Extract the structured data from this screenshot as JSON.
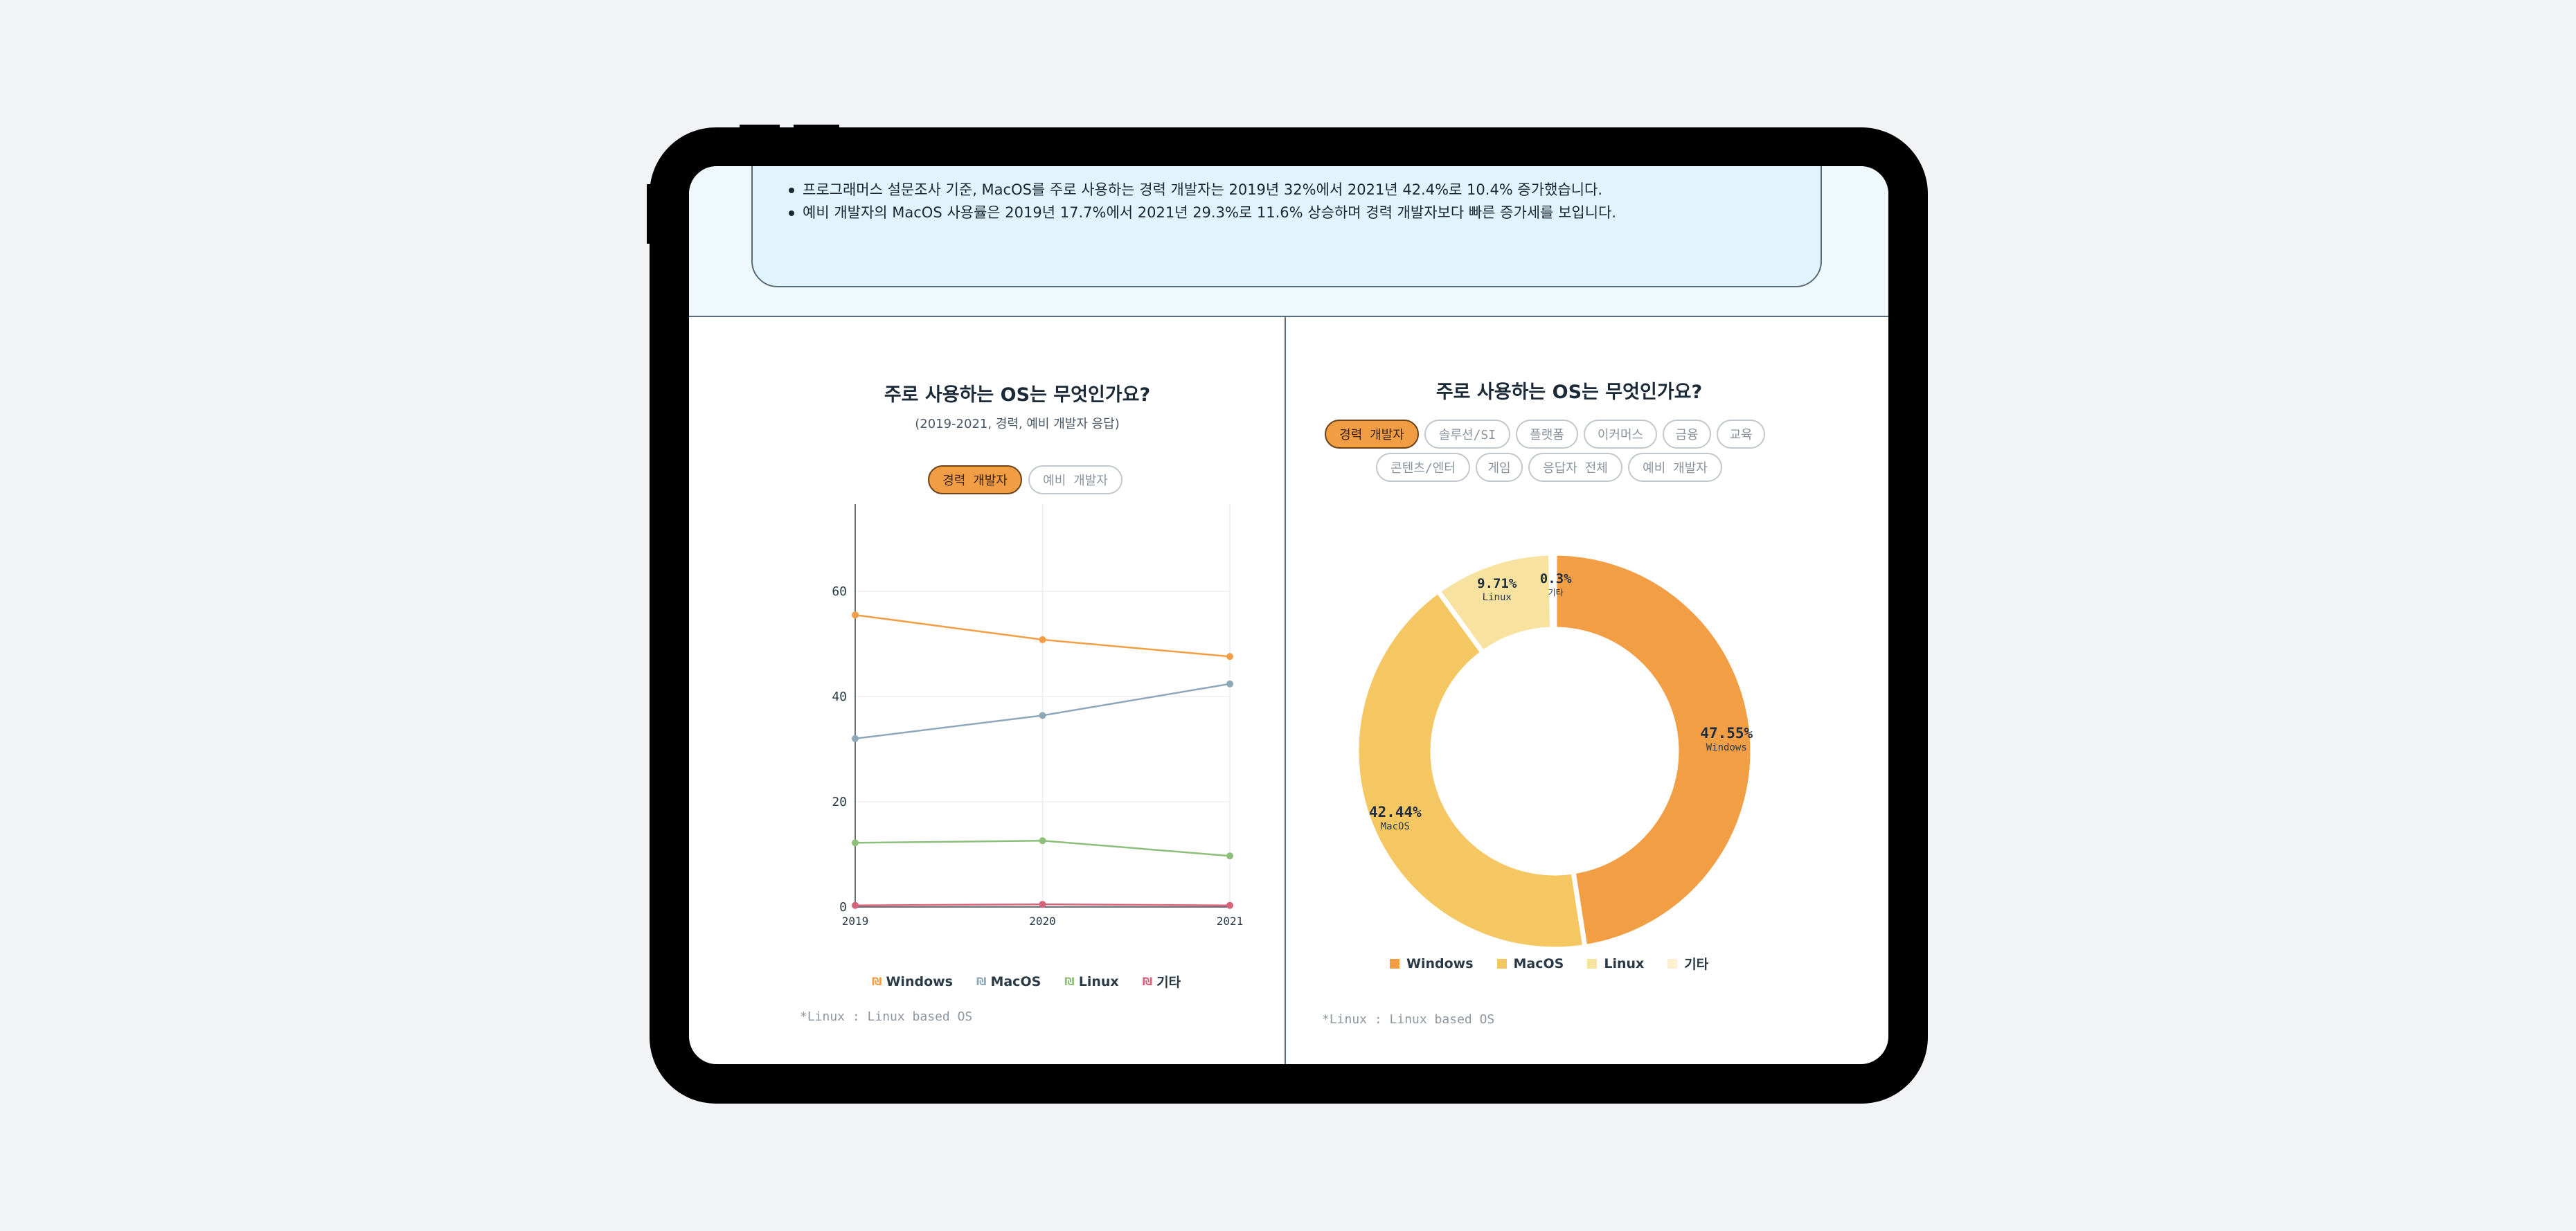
{
  "insights": [
    "프로그래머스 설문조사 기준, MacOS를 주로 사용하는 경력 개발자는 2019년 32%에서 2021년 42.4%로 10.4% 증가했습니다.",
    "예비 개발자의 MacOS 사용률은 2019년 17.7%에서 2021년 29.3%로 11.6% 상승하며 경력 개발자보다 빠른 증가세를 보입니다."
  ],
  "left": {
    "title": "주로 사용하는 OS는 무엇인가요?",
    "subtitle": "(2019-2021, 경력, 예비 개발자 응답)",
    "tabs": [
      {
        "label": "경력 개발자",
        "active": true
      },
      {
        "label": "예비 개발자",
        "active": false
      }
    ],
    "legend": [
      "Windows",
      "MacOS",
      "Linux",
      "기타"
    ],
    "footnote": "*Linux : Linux based OS"
  },
  "right": {
    "title": "주로 사용하는 OS는 무엇인가요?",
    "tabs_row1": [
      {
        "label": "경력 개발자",
        "active": true
      },
      {
        "label": "솔루션/SI",
        "active": false
      },
      {
        "label": "플랫폼",
        "active": false
      },
      {
        "label": "이커머스",
        "active": false
      },
      {
        "label": "금융",
        "active": false
      },
      {
        "label": "교육",
        "active": false
      }
    ],
    "tabs_row2": [
      {
        "label": "콘텐츠/엔터",
        "active": false
      },
      {
        "label": "게임",
        "active": false
      },
      {
        "label": "응답자 전체",
        "active": false
      },
      {
        "label": "예비 개발자",
        "active": false
      }
    ],
    "legend": [
      "Windows",
      "MacOS",
      "Linux",
      "기타"
    ],
    "footnote": "*Linux : Linux based OS"
  },
  "colors": {
    "windows": "#f29e44",
    "macos": "#8fa8b8",
    "linux": "#8cc07a",
    "other": "#d6637a",
    "donut_windows": "#f19e45",
    "donut_macos": "#f4c762",
    "donut_linux": "#f8e2a0",
    "donut_other": "#fdf0d2"
  },
  "chart_data": [
    {
      "type": "line",
      "x": [
        "2019",
        "2020",
        "2021"
      ],
      "series": [
        {
          "name": "Windows",
          "values": [
            55.5,
            50.8,
            47.6
          ]
        },
        {
          "name": "MacOS",
          "values": [
            32.0,
            36.4,
            42.4
          ]
        },
        {
          "name": "Linux",
          "values": [
            12.2,
            12.6,
            9.7
          ]
        },
        {
          "name": "기타",
          "values": [
            0.3,
            0.5,
            0.3
          ]
        }
      ],
      "ylim": [
        0,
        80
      ],
      "yticks": [
        0,
        20,
        40,
        60,
        80
      ],
      "grid": true,
      "legend": "bottom"
    },
    {
      "type": "pie",
      "donut": true,
      "slices": [
        {
          "name": "Windows",
          "value": 47.55,
          "label": "47.55%"
        },
        {
          "name": "MacOS",
          "value": 42.44,
          "label": "42.44%"
        },
        {
          "name": "Linux",
          "value": 9.71,
          "label": "9.71%"
        },
        {
          "name": "기타",
          "value": 0.3,
          "label": "0.3%"
        }
      ],
      "legend": "bottom"
    }
  ]
}
